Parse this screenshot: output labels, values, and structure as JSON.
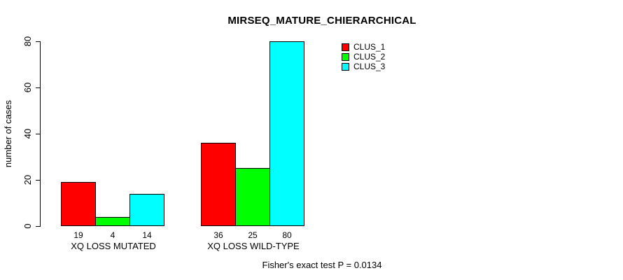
{
  "chart_data": {
    "type": "bar",
    "title": "MIRSEQ_MATURE_CHIERARCHICAL",
    "ylabel": "number of cases",
    "xlabel": "",
    "ylim": [
      0,
      80
    ],
    "yticks": [
      0,
      20,
      40,
      60,
      80
    ],
    "categories": [
      "XQ LOSS MUTATED",
      "XQ LOSS WILD-TYPE"
    ],
    "series": [
      {
        "name": "CLUS_1",
        "color": "#ff0000",
        "values": [
          19,
          36
        ]
      },
      {
        "name": "CLUS_2",
        "color": "#00ff00",
        "values": [
          4,
          25
        ]
      },
      {
        "name": "CLUS_3",
        "color": "#00ffff",
        "values": [
          14,
          80
        ]
      }
    ],
    "bar_value_labels": [
      [
        "19",
        "4",
        "14"
      ],
      [
        "36",
        "25",
        "80"
      ]
    ],
    "legend_position": "top-right-inside",
    "grid": false,
    "annotation": "Fisher's exact test P = 0.0134"
  }
}
